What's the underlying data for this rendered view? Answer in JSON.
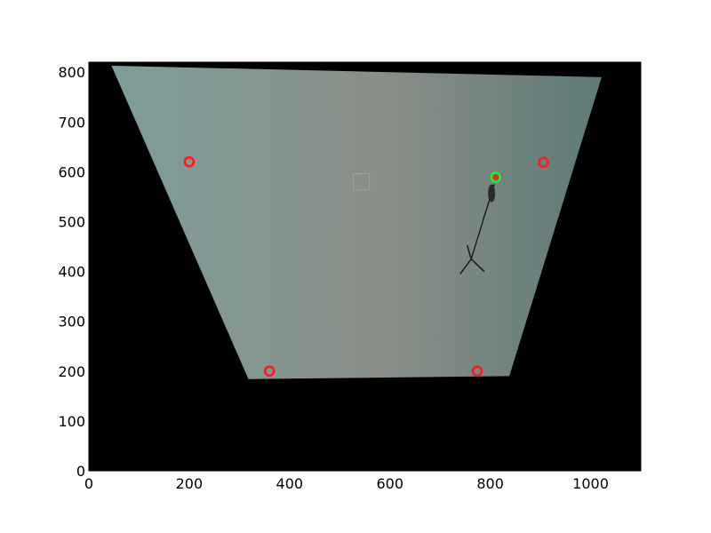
{
  "chart_data": {
    "type": "scatter",
    "title": "",
    "xlabel": "",
    "ylabel": "",
    "xlim": [
      0,
      1100
    ],
    "ylim": [
      0,
      820
    ],
    "xticks": [
      "0",
      "200",
      "400",
      "600",
      "800",
      "1000"
    ],
    "yticks": [
      "0",
      "100",
      "200",
      "300",
      "400",
      "500",
      "600",
      "700",
      "800"
    ],
    "grid": false,
    "legend": "none",
    "background_image": {
      "description_colors": {
        "outside": "#000000",
        "floor": "#7f9593"
      },
      "warped_region_corners": [
        [
          45,
          813
        ],
        [
          1022,
          790
        ],
        [
          838,
          190
        ],
        [
          318,
          184
        ]
      ]
    },
    "series": [
      {
        "marker": "open-circle",
        "color": "#ff1a1a",
        "x": [
          200,
          906,
          360,
          774
        ],
        "y": [
          620,
          619,
          200,
          200
        ]
      },
      {
        "marker": "open-circle",
        "color": "#22ee22",
        "x": [
          811
        ],
        "y": [
          589
        ]
      }
    ],
    "scene_objects": {
      "pole_top": [
        808,
        575
      ],
      "pole_base": [
        762,
        425
      ],
      "tripod_legs": [
        [
          740,
          395
        ],
        [
          788,
          400
        ],
        [
          754,
          453
        ]
      ],
      "small_square": [
        543,
        580
      ]
    }
  }
}
